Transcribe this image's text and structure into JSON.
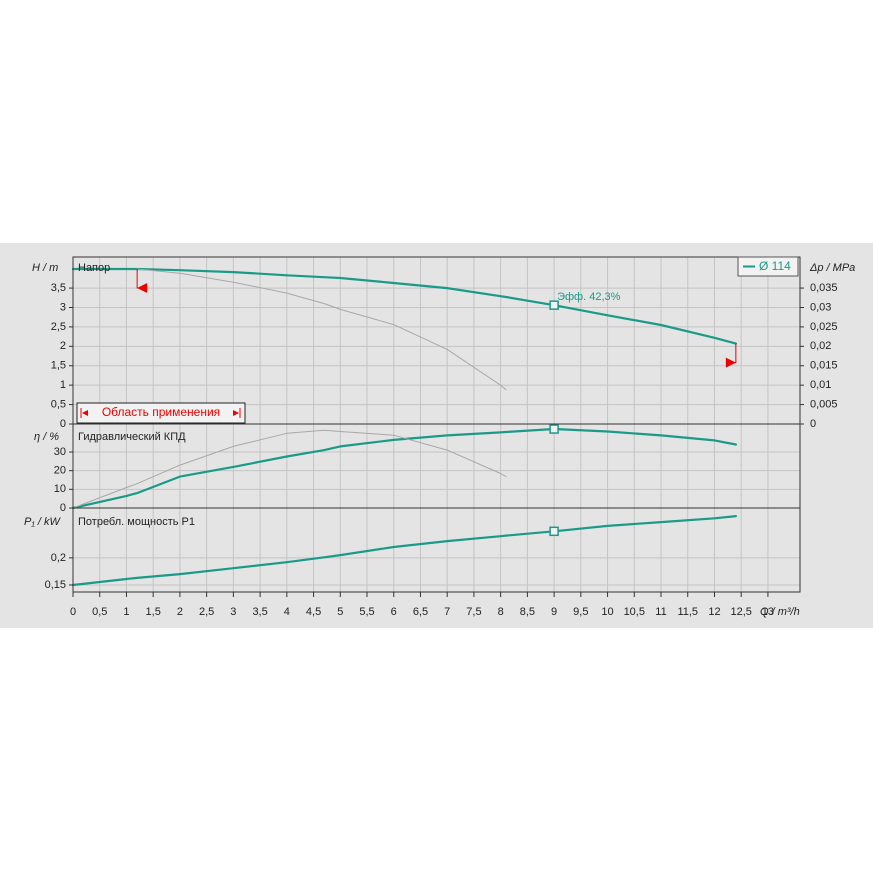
{
  "x_axis": {
    "label": "Q / m³/h",
    "xlim": [
      0,
      13.6
    ],
    "xticks": [
      0,
      {
        "value": 0.5,
        "label": "0,5"
      },
      1,
      {
        "value": 1.5,
        "label": "1,5"
      },
      2,
      {
        "value": 2.5,
        "label": "2,5"
      },
      3,
      {
        "value": 3.5,
        "label": "3,5"
      },
      4,
      {
        "value": 4.5,
        "label": "4,5"
      },
      5,
      {
        "value": 5.5,
        "label": "5,5"
      },
      6,
      {
        "value": 6.5,
        "label": "6,5"
      },
      7,
      {
        "value": 7.5,
        "label": "7,5"
      },
      8,
      {
        "value": 8.5,
        "label": "8,5"
      },
      9,
      {
        "value": 9.5,
        "label": "9,5"
      },
      10,
      {
        "value": 10.5,
        "label": "10,5"
      },
      11,
      {
        "value": 11.5,
        "label": "11,5"
      },
      12,
      {
        "value": 12.5,
        "label": "12,5"
      },
      13
    ]
  },
  "duty_point": {
    "x": 9
  },
  "legend": {
    "name": "Ø 114"
  },
  "range_label": "Область применения",
  "chart_data": [
    {
      "type": "line",
      "title": "Напор",
      "y_label": "H / m",
      "y2_label": "Δp / MPa",
      "annotation": "Эфф.  42,3%",
      "x": [
        0,
        1,
        1.2,
        2,
        3,
        4,
        4.7,
        5,
        6,
        7,
        8,
        8.1,
        9,
        10,
        11,
        12,
        12.4
      ],
      "series": [
        {
          "name": "Ø 114",
          "color": "#1a9a89",
          "values": [
            3.99,
            3.99,
            3.99,
            3.96,
            3.91,
            3.83,
            3.78,
            3.76,
            3.63,
            3.5,
            3.29,
            3.27,
            3.06,
            2.8,
            2.55,
            2.22,
            2.07
          ]
        },
        {
          "color": "#a8a8a8",
          "values": [
            null,
            null,
            3.99,
            3.88,
            3.65,
            3.37,
            3.1,
            2.95,
            2.56,
            1.92,
            1.0,
            0.88,
            null,
            null,
            null,
            null,
            null
          ]
        }
      ],
      "ylim": [
        0,
        4.3
      ],
      "yticks": [
        0,
        {
          "value": 0.5,
          "label": "0,5"
        },
        1,
        {
          "value": 1.5,
          "label": "1,5"
        },
        2,
        {
          "value": 2.5,
          "label": "2,5"
        },
        3,
        {
          "value": 3.5,
          "label": "3,5"
        }
      ],
      "y2lim": [
        0,
        0.043
      ],
      "y2ticks": [
        0,
        {
          "value": 0.005,
          "label": "0,005"
        },
        {
          "value": 0.01,
          "label": "0,01"
        },
        {
          "value": 0.015,
          "label": "0,015"
        },
        {
          "value": 0.02,
          "label": "0,02"
        },
        {
          "value": 0.025,
          "label": "0,025"
        },
        {
          "value": 0.03,
          "label": "0,03"
        },
        {
          "value": 0.035,
          "label": "0,035"
        }
      ],
      "grid": true
    },
    {
      "type": "line",
      "title": "Гидравлический КПД",
      "y_label": "η / %",
      "x": [
        0,
        1,
        1.2,
        2,
        3,
        4,
        4.7,
        5,
        6,
        7,
        8,
        8.1,
        9,
        10,
        11,
        12,
        12.4
      ],
      "series": [
        {
          "color": "#1a9a89",
          "values": [
            0,
            6.5,
            8,
            16.8,
            22,
            27.6,
            31,
            33,
            36.5,
            38.9,
            40.5,
            40.7,
            42.3,
            41,
            38.9,
            36.2,
            34
          ]
        },
        {
          "color": "#a8a8a8",
          "values": [
            0,
            11,
            13,
            23,
            33,
            40,
            41.6,
            41,
            39,
            31,
            18.5,
            16.8,
            null,
            null,
            null,
            null,
            null
          ]
        }
      ],
      "ylim": [
        0,
        45
      ],
      "yticks": [
        0,
        10,
        20,
        30
      ],
      "grid": true
    },
    {
      "type": "line",
      "title": "Потребл. мощность P1",
      "y_label": "P₁ / kW",
      "x": [
        0,
        1,
        1.2,
        2,
        3,
        4,
        4.7,
        5,
        6,
        7,
        8,
        8.1,
        9,
        10,
        11,
        12,
        12.4
      ],
      "series": [
        {
          "color": "#1a9a89",
          "values": [
            0.15,
            0.161,
            0.163,
            0.17,
            0.181,
            0.192,
            0.201,
            0.205,
            0.22,
            0.231,
            0.24,
            0.241,
            0.249,
            0.259,
            0.266,
            0.273,
            0.277
          ]
        }
      ],
      "ylim": [
        0.137,
        0.292
      ],
      "yticks": [
        {
          "value": 0.15,
          "label": "0,15"
        },
        {
          "value": 0.2,
          "label": "0,2"
        }
      ],
      "grid": true
    }
  ]
}
